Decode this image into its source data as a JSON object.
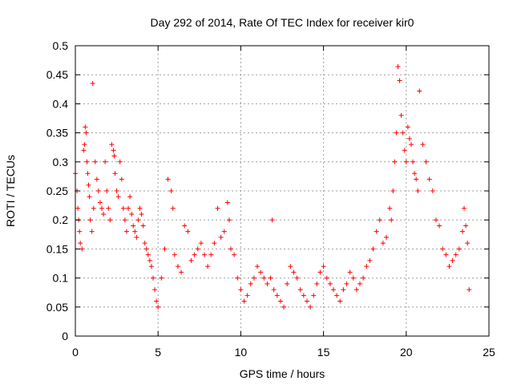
{
  "chart_data": {
    "type": "scatter",
    "title": "Day 292 of 2014, Rate Of TEC Index for receiver kir0",
    "xlabel": "GPS time / hours",
    "ylabel": "ROTI / TECUs",
    "xlim": [
      0,
      25
    ],
    "ylim": [
      0,
      0.5
    ],
    "xticks": [
      "0",
      "5",
      "10",
      "15",
      "20",
      "25"
    ],
    "yticks": [
      "0",
      "0.05",
      "0.1",
      "0.15",
      "0.2",
      "0.25",
      "0.3",
      "0.35",
      "0.4",
      "0.45",
      "0.5"
    ],
    "grid": true,
    "marker": "+",
    "color": "#ff0000",
    "series": [
      {
        "x": [
          0.0,
          0.1,
          0.15,
          0.2,
          0.25,
          0.3,
          0.4,
          0.5,
          0.55,
          0.6,
          0.65,
          0.7,
          0.75,
          0.8,
          0.85,
          0.9,
          1.0,
          1.05,
          1.1,
          1.2,
          1.3,
          1.4,
          1.5,
          1.6,
          1.7,
          1.8,
          1.9,
          2.0,
          2.1,
          2.2,
          2.3,
          2.35,
          2.4,
          2.5,
          2.6,
          2.7,
          2.8,
          2.9,
          3.0,
          3.1,
          3.2,
          3.3,
          3.4,
          3.5,
          3.6,
          3.7,
          3.8,
          3.9,
          4.0,
          4.1,
          4.2,
          4.3,
          4.4,
          4.5,
          4.6,
          4.7,
          4.8,
          4.9,
          5.0,
          5.2,
          5.4,
          5.6,
          5.8,
          5.9,
          6.0,
          6.2,
          6.4,
          6.6,
          6.8,
          7.0,
          7.2,
          7.4,
          7.6,
          7.8,
          8.0,
          8.2,
          8.4,
          8.6,
          8.8,
          9.0,
          9.2,
          9.3,
          9.4,
          9.6,
          9.8,
          10.0,
          10.2,
          10.4,
          10.6,
          10.8,
          11.0,
          11.2,
          11.4,
          11.6,
          11.8,
          11.9,
          12.0,
          12.2,
          12.4,
          12.6,
          12.8,
          13.0,
          13.2,
          13.4,
          13.6,
          13.8,
          14.0,
          14.2,
          14.4,
          14.6,
          14.8,
          15.0,
          15.2,
          15.4,
          15.6,
          15.8,
          16.0,
          16.2,
          16.4,
          16.6,
          16.8,
          17.0,
          17.2,
          17.4,
          17.6,
          17.8,
          18.0,
          18.2,
          18.4,
          18.6,
          18.8,
          19.0,
          19.1,
          19.2,
          19.3,
          19.4,
          19.5,
          19.6,
          19.7,
          19.8,
          19.9,
          20.0,
          20.1,
          20.2,
          20.3,
          20.4,
          20.5,
          20.6,
          20.7,
          20.8,
          21.0,
          21.2,
          21.4,
          21.6,
          21.8,
          22.0,
          22.2,
          22.4,
          22.6,
          22.8,
          23.0,
          23.2,
          23.4,
          23.5,
          23.6,
          23.7,
          23.8
        ],
        "y": [
          0.28,
          0.25,
          0.22,
          0.2,
          0.18,
          0.16,
          0.15,
          0.32,
          0.33,
          0.36,
          0.35,
          0.3,
          0.28,
          0.26,
          0.24,
          0.2,
          0.18,
          0.435,
          0.22,
          0.3,
          0.27,
          0.25,
          0.23,
          0.22,
          0.21,
          0.3,
          0.25,
          0.22,
          0.2,
          0.33,
          0.32,
          0.31,
          0.28,
          0.25,
          0.24,
          0.3,
          0.27,
          0.22,
          0.2,
          0.18,
          0.22,
          0.24,
          0.21,
          0.19,
          0.18,
          0.17,
          0.2,
          0.22,
          0.21,
          0.19,
          0.16,
          0.15,
          0.14,
          0.13,
          0.12,
          0.1,
          0.08,
          0.06,
          0.05,
          0.1,
          0.15,
          0.27,
          0.25,
          0.22,
          0.14,
          0.12,
          0.11,
          0.19,
          0.18,
          0.13,
          0.14,
          0.15,
          0.16,
          0.14,
          0.12,
          0.14,
          0.16,
          0.22,
          0.17,
          0.18,
          0.23,
          0.2,
          0.15,
          0.14,
          0.1,
          0.08,
          0.06,
          0.07,
          0.09,
          0.1,
          0.12,
          0.11,
          0.1,
          0.09,
          0.1,
          0.2,
          0.08,
          0.07,
          0.06,
          0.05,
          0.09,
          0.12,
          0.11,
          0.1,
          0.08,
          0.07,
          0.06,
          0.05,
          0.07,
          0.09,
          0.11,
          0.12,
          0.1,
          0.09,
          0.08,
          0.07,
          0.06,
          0.08,
          0.09,
          0.11,
          0.1,
          0.08,
          0.09,
          0.1,
          0.12,
          0.13,
          0.15,
          0.18,
          0.2,
          0.16,
          0.17,
          0.22,
          0.2,
          0.25,
          0.3,
          0.35,
          0.464,
          0.44,
          0.38,
          0.35,
          0.32,
          0.3,
          0.36,
          0.34,
          0.33,
          0.3,
          0.28,
          0.27,
          0.25,
          0.422,
          0.33,
          0.3,
          0.27,
          0.25,
          0.2,
          0.19,
          0.15,
          0.14,
          0.12,
          0.13,
          0.14,
          0.15,
          0.18,
          0.22,
          0.19,
          0.16,
          0.08
        ]
      }
    ]
  }
}
